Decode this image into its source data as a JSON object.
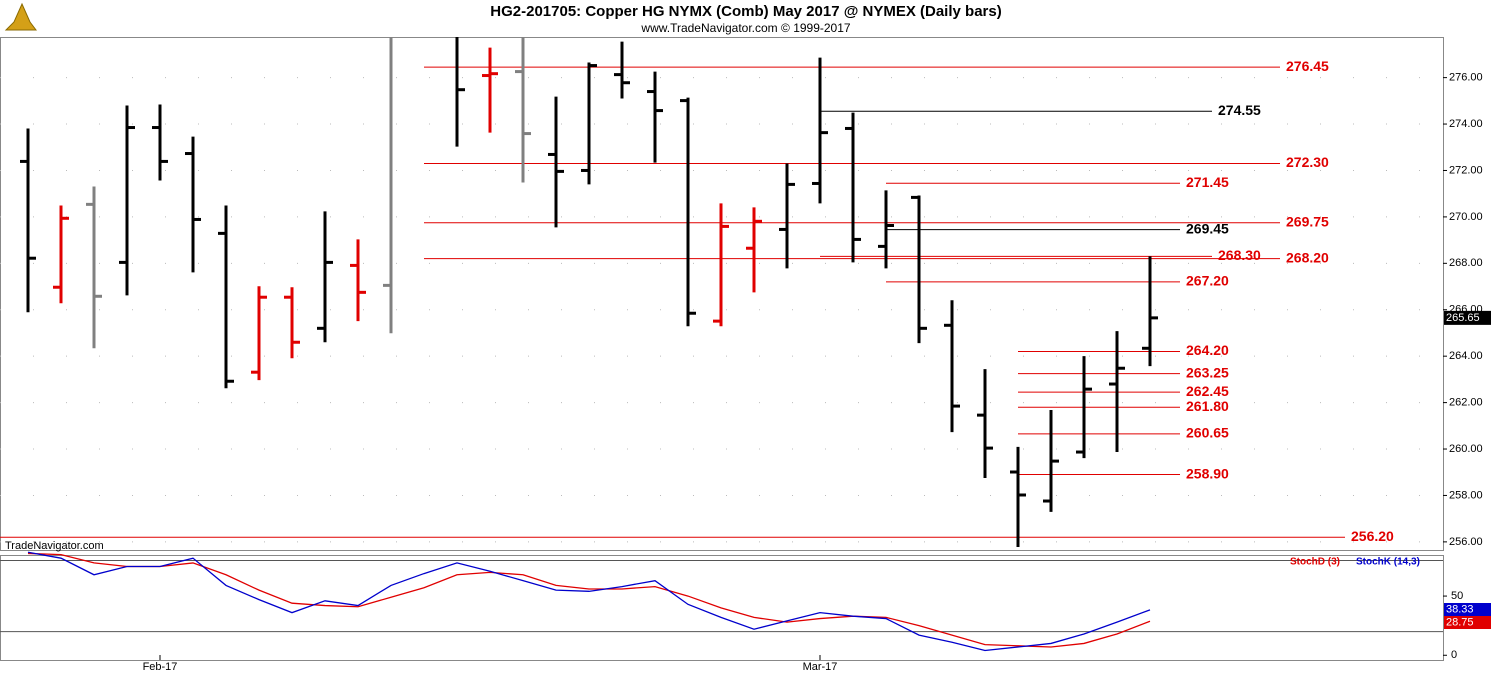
{
  "chart_data": [
    {
      "type": "ohlc",
      "title": "HG2-201705:  Copper HG NYMX (Comb) May 2017 @ NYMEX  (Daily bars)",
      "subtitle": "www.TradeNavigator.com © 1999-2017",
      "watermark": "TradeNavigator.com",
      "categories": [
        null,
        null,
        null,
        null,
        "Feb-17",
        null,
        null,
        null,
        null,
        null,
        null,
        null,
        null,
        null,
        null,
        null,
        null,
        null,
        null,
        null,
        null,
        null,
        null,
        null,
        "Mar-17",
        null,
        null,
        null,
        null,
        null,
        null,
        null,
        null,
        null,
        null
      ],
      "open": [
        272.39,
        266.97,
        270.54,
        268.04,
        273.85,
        272.73,
        269.29,
        263.31,
        266.54,
        265.2,
        267.91,
        267.05,
        null,
        278.0,
        276.09,
        276.26,
        272.69,
        272.0,
        276.13,
        275.4,
        275.01,
        265.51,
        268.65,
        269.46,
        271.44,
        273.81,
        268.73,
        270.84,
        265.33,
        261.46,
        259.01,
        257.76,
        259.87,
        262.8,
        264.34
      ],
      "high": [
        273.81,
        270.49,
        271.31,
        274.8,
        274.84,
        273.46,
        270.49,
        267.01,
        266.97,
        270.24,
        269.03,
        278.5,
        null,
        278.5,
        277.29,
        278.5,
        275.18,
        276.65,
        277.55,
        276.26,
        275.14,
        270.58,
        270.41,
        272.3,
        276.86,
        274.49,
        271.14,
        270.92,
        266.41,
        263.44,
        260.09,
        261.68,
        264.0,
        265.08,
        268.3
      ],
      "low": [
        265.89,
        266.28,
        264.34,
        266.62,
        271.57,
        267.61,
        262.62,
        262.97,
        263.91,
        264.6,
        265.51,
        264.99,
        null,
        273.03,
        273.63,
        271.48,
        269.55,
        271.4,
        275.1,
        272.34,
        265.29,
        265.29,
        266.75,
        267.78,
        270.58,
        268.04,
        267.78,
        264.56,
        260.73,
        258.75,
        255.78,
        257.29,
        259.61,
        259.87,
        263.57
      ],
      "close": [
        268.22,
        269.94,
        266.58,
        273.85,
        272.39,
        269.89,
        262.92,
        266.54,
        264.6,
        268.04,
        266.75,
        278.0,
        null,
        275.48,
        276.17,
        273.59,
        271.96,
        276.52,
        275.78,
        274.58,
        265.85,
        269.59,
        269.81,
        271.4,
        273.63,
        269.03,
        269.63,
        265.2,
        261.85,
        260.04,
        258.02,
        259.48,
        262.58,
        263.48,
        265.65
      ],
      "colors": [
        "#000000",
        "#e00000",
        "#808080",
        "#000000",
        "#000000",
        "#000000",
        "#000000",
        "#e00000",
        "#e00000",
        "#000000",
        "#e00000",
        "#808080",
        null,
        "#000000",
        "#e00000",
        "#808080",
        "#000000",
        "#000000",
        "#000000",
        "#000000",
        "#000000",
        "#e00000",
        "#e00000",
        "#000000",
        "#000000",
        "#000000",
        "#000000",
        "#000000",
        "#000000",
        "#000000",
        "#000000",
        "#000000",
        "#000000",
        "#000000",
        "#000000"
      ],
      "ylim": [
        255.65,
        277.75
      ],
      "yticks": [
        {
          "value": 256,
          "label": "256.00"
        },
        {
          "value": 258,
          "label": "258.00"
        },
        {
          "value": 260,
          "label": "260.00"
        },
        {
          "value": 262,
          "label": "262.00"
        },
        {
          "value": 264,
          "label": "264.00"
        },
        {
          "value": 266,
          "label": "266.00"
        },
        {
          "value": 268,
          "label": "268.00"
        },
        {
          "value": 270,
          "label": "270.00"
        },
        {
          "value": 272,
          "label": "272.00"
        },
        {
          "value": 274,
          "label": "274.00"
        },
        {
          "value": 276,
          "label": "276.00"
        }
      ],
      "grid": true,
      "levels": [
        {
          "value": 276.45,
          "label": "276.45",
          "color": "#e00000",
          "from": 12
        },
        {
          "value": 274.55,
          "label": "274.55",
          "color": "#000000",
          "from": 24
        },
        {
          "value": 272.3,
          "label": "272.30",
          "color": "#e00000",
          "from": 12
        },
        {
          "value": 271.45,
          "label": "271.45",
          "color": "#e00000",
          "from": 26
        },
        {
          "value": 269.75,
          "label": "269.75",
          "color": "#e00000",
          "from": 12
        },
        {
          "value": 269.45,
          "label": "269.45",
          "color": "#000000",
          "from": 26
        },
        {
          "value": 268.3,
          "label": "268.30",
          "color": "#e00000",
          "from": 24
        },
        {
          "value": 268.2,
          "label": "268.20",
          "color": "#e00000",
          "from": 12
        },
        {
          "value": 267.2,
          "label": "267.20",
          "color": "#e00000",
          "from": 26
        },
        {
          "value": 264.2,
          "label": "264.20",
          "color": "#e00000",
          "from": 30
        },
        {
          "value": 263.25,
          "label": "263.25",
          "color": "#e00000",
          "from": 30
        },
        {
          "value": 262.45,
          "label": "262.45",
          "color": "#e00000",
          "from": 30
        },
        {
          "value": 261.8,
          "label": "261.80",
          "color": "#e00000",
          "from": 30
        },
        {
          "value": 260.65,
          "label": "260.65",
          "color": "#e00000",
          "from": 30
        },
        {
          "value": 258.9,
          "label": "258.90",
          "color": "#e00000",
          "from": 30
        },
        {
          "value": 256.2,
          "label": "256.20",
          "color": "#e00000",
          "from": 0
        }
      ]
    },
    {
      "type": "line",
      "series": [
        {
          "name": "StochD (3)",
          "color": "#e00000",
          "values": [
            86,
            85,
            78,
            75,
            75,
            78,
            68,
            55,
            44,
            42,
            41,
            49,
            57,
            68,
            70,
            68,
            59,
            56,
            56,
            58,
            50,
            40,
            32,
            28,
            31,
            33,
            32,
            25,
            17,
            9,
            8,
            7,
            10,
            18,
            28.75
          ]
        },
        {
          "name": "StochK (14,3)",
          "color": "#0000cc",
          "values": [
            87,
            82,
            68,
            75,
            75,
            82,
            59,
            47,
            36,
            46,
            42,
            59,
            69,
            78,
            71,
            63,
            55,
            54,
            58,
            63,
            43,
            32,
            22,
            29,
            36,
            33,
            31,
            17,
            11,
            4,
            7,
            10,
            18,
            28,
            38.33
          ]
        }
      ],
      "ylim": [
        -4,
        83
      ],
      "yticks": [
        0,
        50
      ],
      "levels": [
        20,
        80
      ]
    }
  ]
}
